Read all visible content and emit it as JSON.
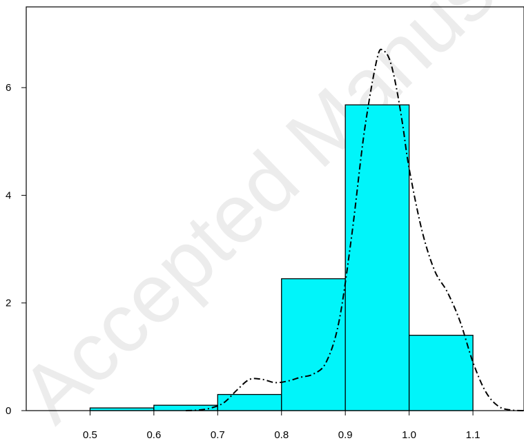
{
  "chart_data": {
    "type": "bar",
    "subtype": "histogram-with-density",
    "title": "",
    "xlabel": "",
    "ylabel": "",
    "xlim": [
      0.4,
      1.18
    ],
    "ylim": [
      0,
      7.5
    ],
    "x_ticks": [
      "0.5",
      "0.6",
      "0.7",
      "0.8",
      "0.9",
      "1.0",
      "1.1"
    ],
    "y_ticks": [
      "0",
      "2",
      "4",
      "6"
    ],
    "bins": [
      {
        "x0": 0.5,
        "x1": 0.6,
        "value": 0.05
      },
      {
        "x0": 0.6,
        "x1": 0.7,
        "value": 0.1
      },
      {
        "x0": 0.7,
        "x1": 0.8,
        "value": 0.3
      },
      {
        "x0": 0.8,
        "x1": 0.9,
        "value": 2.45
      },
      {
        "x0": 0.9,
        "x1": 1.0,
        "value": 5.68
      },
      {
        "x0": 1.0,
        "x1": 1.1,
        "value": 1.4
      }
    ],
    "density_curve": {
      "style": "dash-dot",
      "color": "#000000",
      "points": [
        [
          0.65,
          0.0
        ],
        [
          0.67,
          0.01
        ],
        [
          0.69,
          0.05
        ],
        [
          0.71,
          0.15
        ],
        [
          0.73,
          0.38
        ],
        [
          0.75,
          0.58
        ],
        [
          0.77,
          0.58
        ],
        [
          0.79,
          0.52
        ],
        [
          0.81,
          0.55
        ],
        [
          0.83,
          0.62
        ],
        [
          0.85,
          0.68
        ],
        [
          0.87,
          0.9
        ],
        [
          0.89,
          1.65
        ],
        [
          0.91,
          3.25
        ],
        [
          0.93,
          5.2
        ],
        [
          0.95,
          6.55
        ],
        [
          0.96,
          6.68
        ],
        [
          0.97,
          6.5
        ],
        [
          0.98,
          6.0
        ],
        [
          0.99,
          5.3
        ],
        [
          1.0,
          4.5
        ],
        [
          1.02,
          3.35
        ],
        [
          1.04,
          2.6
        ],
        [
          1.06,
          2.2
        ],
        [
          1.08,
          1.65
        ],
        [
          1.1,
          0.9
        ],
        [
          1.12,
          0.35
        ],
        [
          1.14,
          0.08
        ],
        [
          1.16,
          0.01
        ],
        [
          1.18,
          0.0
        ]
      ]
    },
    "bar_color": "#00f5fa",
    "bar_stroke": "#000000",
    "grid": false,
    "legend": "none"
  },
  "watermark": "Accepted Manuscript"
}
